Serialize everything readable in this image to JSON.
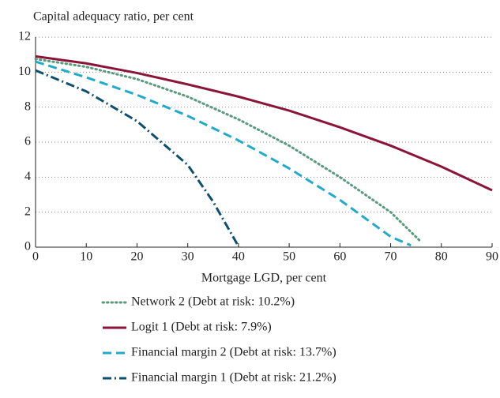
{
  "chart_data": {
    "type": "line",
    "title": "Capital adequacy ratio, per cent",
    "xlabel": "Mortgage LGD, per cent",
    "xlim": [
      0,
      90
    ],
    "xticks": [
      0,
      10,
      20,
      30,
      40,
      50,
      60,
      70,
      80,
      90
    ],
    "ylim": [
      0,
      12
    ],
    "yticks": [
      0,
      2,
      4,
      6,
      8,
      10,
      12
    ],
    "grid": true,
    "series": [
      {
        "name": "Network 2 (Debt at risk: 10.2%)",
        "color": "#5a9a7e",
        "style": "dotted",
        "x": [
          0,
          10,
          20,
          30,
          40,
          50,
          60,
          70,
          76
        ],
        "values": [
          10.75,
          10.3,
          9.6,
          8.6,
          7.3,
          5.8,
          4.0,
          2.0,
          0.3
        ]
      },
      {
        "name": "Logit 1 (Debt at risk: 7.9%)",
        "color": "#8b1538",
        "style": "solid",
        "x": [
          0,
          10,
          20,
          30,
          40,
          50,
          60,
          70,
          80,
          90
        ],
        "values": [
          10.9,
          10.5,
          9.95,
          9.3,
          8.6,
          7.8,
          6.85,
          5.8,
          4.6,
          3.25
        ]
      },
      {
        "name": "Financial margin 2 (Debt at risk: 13.7%)",
        "color": "#22aacc",
        "style": "dashed",
        "x": [
          0,
          10,
          20,
          30,
          40,
          50,
          60,
          70,
          74
        ],
        "values": [
          10.6,
          9.7,
          8.7,
          7.5,
          6.1,
          4.5,
          2.7,
          0.6,
          0.1
        ]
      },
      {
        "name": "Financial margin 1 (Debt at risk: 21.2%)",
        "color": "#0d4f6e",
        "style": "dashdot",
        "x": [
          0,
          10,
          20,
          30,
          35,
          40
        ],
        "values": [
          10.1,
          8.9,
          7.2,
          4.7,
          2.6,
          0.05
        ]
      }
    ]
  }
}
